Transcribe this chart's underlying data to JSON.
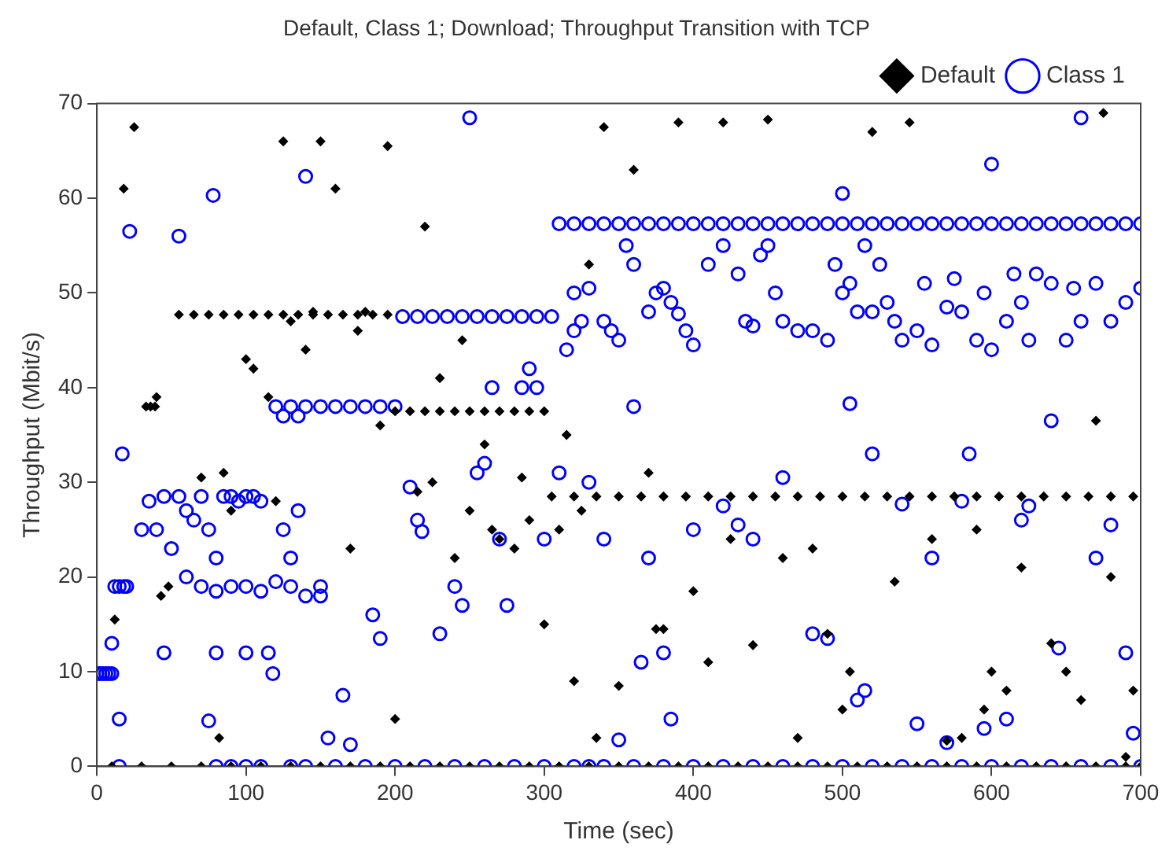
{
  "chart_data": {
    "type": "scatter",
    "title": "Default, Class 1; Download; Throughput Transition with TCP",
    "xlabel": "Time (sec)",
    "ylabel": "Throughput (Mbit/s)",
    "xlim": [
      0,
      700
    ],
    "ylim": [
      0,
      70
    ],
    "xticks": [
      0,
      100,
      200,
      300,
      400,
      500,
      600,
      700
    ],
    "yticks": [
      0,
      10,
      20,
      30,
      40,
      50,
      60,
      70
    ],
    "grid": false,
    "legend": "top right",
    "series": [
      {
        "name": "Default",
        "color": "#000000",
        "marker": "diamond",
        "x": [
          10,
          30,
          50,
          70,
          90,
          110,
          130,
          150,
          170,
          190,
          210,
          230,
          250,
          270,
          290,
          310,
          330,
          350,
          370,
          390,
          410,
          430,
          450,
          470,
          490,
          510,
          530,
          550,
          570,
          590,
          610,
          630,
          650,
          670,
          690,
          700,
          55,
          65,
          75,
          85,
          95,
          105,
          115,
          125,
          135,
          145,
          155,
          165,
          175,
          185,
          195,
          200,
          210,
          220,
          230,
          240,
          250,
          260,
          270,
          280,
          290,
          300,
          305,
          320,
          335,
          350,
          365,
          380,
          395,
          410,
          425,
          440,
          455,
          470,
          485,
          500,
          515,
          530,
          545,
          560,
          575,
          590,
          605,
          620,
          635,
          650,
          665,
          680,
          695,
          33,
          36,
          39,
          12,
          18,
          25,
          40,
          43,
          48,
          70,
          82,
          85,
          90,
          100,
          105,
          115,
          120,
          125,
          130,
          140,
          145,
          150,
          160,
          170,
          175,
          180,
          190,
          195,
          200,
          215,
          220,
          225,
          230,
          240,
          245,
          250,
          260,
          265,
          270,
          280,
          285,
          290,
          300,
          310,
          315,
          320,
          325,
          330,
          335,
          340,
          350,
          360,
          370,
          375,
          380,
          390,
          400,
          410,
          420,
          425,
          440,
          450,
          460,
          470,
          480,
          490,
          500,
          505,
          520,
          535,
          545,
          560,
          570,
          580,
          590,
          595,
          600,
          610,
          620,
          640,
          650,
          660,
          670,
          675,
          680,
          690,
          695
        ],
        "values": [
          0,
          0,
          0,
          0,
          0,
          0,
          0,
          0,
          0,
          0,
          0,
          0,
          0,
          0,
          0,
          0,
          0,
          0,
          0,
          0,
          0,
          0,
          0,
          0,
          0,
          0,
          0,
          0,
          0,
          0,
          0,
          0,
          0,
          0,
          0,
          0,
          47.7,
          47.7,
          47.7,
          47.7,
          47.7,
          47.7,
          47.7,
          47.7,
          47.7,
          47.7,
          47.7,
          47.7,
          47.7,
          47.7,
          47.7,
          37.5,
          37.5,
          37.5,
          37.5,
          37.5,
          37.5,
          37.5,
          37.5,
          37.5,
          37.5,
          37.5,
          28.5,
          28.5,
          28.5,
          28.5,
          28.5,
          28.5,
          28.5,
          28.5,
          28.5,
          28.5,
          28.5,
          28.5,
          28.5,
          28.5,
          28.5,
          28.5,
          28.5,
          28.5,
          28.5,
          28.5,
          28.5,
          28.5,
          28.5,
          28.5,
          28.5,
          28.5,
          28.5,
          38,
          38,
          38,
          15.5,
          61,
          67.5,
          39,
          18,
          19,
          30.5,
          3,
          31,
          27,
          43,
          42,
          39,
          28,
          66,
          47,
          44,
          48,
          66,
          61,
          23,
          46,
          48,
          36,
          65.5,
          5,
          29,
          57,
          30,
          41,
          22,
          45,
          27,
          34,
          25,
          24,
          23,
          30.5,
          26,
          15,
          25,
          35,
          9,
          27,
          53,
          3,
          67.5,
          8.5,
          63,
          31,
          14.5,
          14.5,
          68,
          18.5,
          11,
          68,
          24,
          12.8,
          68.3,
          22,
          3,
          23,
          14,
          6,
          10,
          67,
          19.5,
          68,
          24,
          2.7,
          3,
          25,
          6,
          10,
          8,
          21,
          13,
          10,
          7,
          36.5,
          69,
          20,
          1,
          8
        ]
      },
      {
        "name": "Class 1",
        "color": "#0000ff",
        "marker": "circle",
        "x": [
          0,
          2,
          4,
          6,
          8,
          10,
          12,
          15,
          18,
          10,
          15,
          17,
          22,
          20,
          30,
          35,
          40,
          45,
          50,
          55,
          60,
          65,
          70,
          75,
          80,
          85,
          90,
          95,
          100,
          105,
          110,
          60,
          70,
          80,
          90,
          100,
          110,
          120,
          130,
          140,
          150,
          45,
          55,
          78,
          75,
          118,
          100,
          115,
          80,
          125,
          130,
          135,
          140,
          150,
          155,
          165,
          170,
          185,
          190,
          210,
          215,
          218,
          230,
          240,
          245,
          250,
          255,
          260,
          265,
          270,
          275,
          285,
          290,
          295,
          300,
          310,
          315,
          320,
          325,
          330,
          340,
          350,
          120,
          130,
          140,
          150,
          160,
          170,
          180,
          190,
          200,
          125,
          135,
          205,
          215,
          225,
          235,
          245,
          255,
          265,
          275,
          285,
          295,
          305,
          310,
          320,
          330,
          340,
          350,
          360,
          370,
          380,
          390,
          400,
          410,
          420,
          430,
          440,
          450,
          460,
          470,
          480,
          490,
          500,
          510,
          520,
          530,
          540,
          550,
          560,
          570,
          580,
          590,
          600,
          610,
          620,
          630,
          640,
          650,
          660,
          670,
          680,
          690,
          700,
          320,
          330,
          340,
          345,
          350,
          355,
          360,
          370,
          375,
          380,
          385,
          390,
          395,
          400,
          410,
          420,
          430,
          435,
          440,
          445,
          450,
          455,
          460,
          470,
          480,
          490,
          495,
          500,
          505,
          510,
          515,
          520,
          525,
          530,
          535,
          540,
          550,
          555,
          560,
          570,
          575,
          580,
          590,
          595,
          600,
          610,
          615,
          620,
          625,
          630,
          640,
          650,
          655,
          660,
          670,
          680,
          690,
          360,
          365,
          370,
          380,
          385,
          400,
          420,
          430,
          440,
          460,
          480,
          490,
          500,
          505,
          510,
          515,
          520,
          540,
          550,
          560,
          570,
          580,
          585,
          595,
          600,
          610,
          620,
          625,
          640,
          645,
          660,
          670,
          680,
          690,
          695,
          700,
          15,
          80,
          90,
          100,
          110,
          130,
          140,
          160,
          180,
          200,
          220,
          240,
          260,
          280,
          300,
          320,
          330,
          340,
          360,
          380,
          400,
          420,
          440,
          460,
          480,
          500,
          520,
          540,
          560,
          580,
          600,
          620,
          640,
          660,
          680,
          700
        ],
        "values": [
          9.8,
          9.8,
          9.8,
          9.8,
          9.8,
          9.8,
          19,
          19,
          19,
          13,
          5,
          33,
          56.5,
          19,
          25,
          28,
          25,
          28.5,
          23,
          28.5,
          27,
          26,
          28.5,
          25,
          22,
          28.5,
          28.5,
          28,
          28.5,
          28.5,
          28,
          20,
          19,
          18.5,
          19,
          19,
          18.5,
          19.5,
          19,
          18,
          19,
          12,
          56,
          60.3,
          4.8,
          9.8,
          12,
          12,
          12,
          25,
          22,
          27,
          62.3,
          18,
          3,
          7.5,
          2.3,
          16,
          13.5,
          29.5,
          26,
          24.8,
          14,
          19,
          17,
          68.5,
          31,
          32,
          40,
          24,
          17,
          40,
          42,
          40,
          24,
          31,
          44,
          46,
          47,
          30,
          24,
          2.8,
          38,
          38,
          38,
          38,
          38,
          38,
          38,
          38,
          38,
          37,
          37,
          47.5,
          47.5,
          47.5,
          47.5,
          47.5,
          47.5,
          47.5,
          47.5,
          47.5,
          47.5,
          47.5,
          57.3,
          57.3,
          57.3,
          57.3,
          57.3,
          57.3,
          57.3,
          57.3,
          57.3,
          57.3,
          57.3,
          57.3,
          57.3,
          57.3,
          57.3,
          57.3,
          57.3,
          57.3,
          57.3,
          57.3,
          57.3,
          57.3,
          57.3,
          57.3,
          57.3,
          57.3,
          57.3,
          57.3,
          57.3,
          57.3,
          57.3,
          57.3,
          57.3,
          57.3,
          57.3,
          57.3,
          57.3,
          57.3,
          57.3,
          57.3,
          50,
          50.5,
          47,
          46,
          45,
          55,
          53,
          48,
          50,
          50.5,
          49,
          47.8,
          46,
          44.5,
          53,
          55,
          52,
          47,
          46.5,
          54,
          55,
          50,
          47,
          46,
          46,
          45,
          53,
          50,
          51,
          48,
          55,
          48,
          53,
          49,
          47,
          45,
          46,
          51,
          44.5,
          48.5,
          51.5,
          48,
          45,
          50,
          44,
          47,
          52,
          49,
          45,
          52,
          51,
          45,
          50.5,
          47,
          51,
          47,
          49,
          38,
          11,
          22,
          12,
          5,
          25,
          27.5,
          25.5,
          24,
          30.5,
          14,
          13.5,
          60.5,
          38.3,
          7,
          8,
          33,
          27.7,
          4.5,
          22,
          2.5,
          28,
          33,
          4,
          63.6,
          5,
          26,
          27.5,
          36.5,
          12.5,
          68.5,
          22,
          25.5,
          12,
          3.5,
          50.5,
          0,
          0,
          0,
          0,
          0,
          0,
          0,
          0,
          0,
          0,
          0,
          0,
          0,
          0,
          0,
          0,
          0,
          0,
          0,
          0,
          0,
          0,
          0,
          0,
          0,
          0,
          0,
          0,
          0,
          0,
          0,
          0,
          0,
          0,
          0,
          0
        ]
      }
    ]
  }
}
